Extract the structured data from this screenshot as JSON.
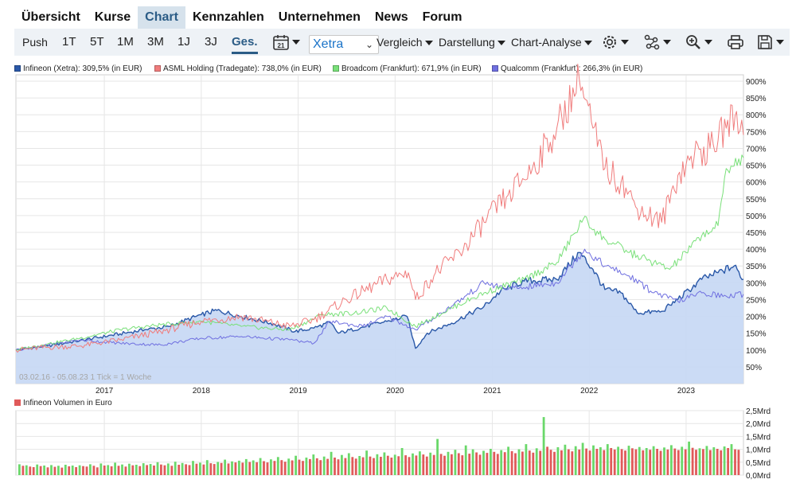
{
  "nav": {
    "items": [
      {
        "label": "Übersicht",
        "active": false
      },
      {
        "label": "Kurse",
        "active": false
      },
      {
        "label": "Chart",
        "active": true
      },
      {
        "label": "Kennzahlen",
        "active": false
      },
      {
        "label": "Unternehmen",
        "active": false
      },
      {
        "label": "News",
        "active": false
      },
      {
        "label": "Forum",
        "active": false
      }
    ]
  },
  "toolbar": {
    "push_label": "Push",
    "ranges": [
      "1T",
      "5T",
      "1M",
      "3M",
      "1J",
      "3J",
      "Ges."
    ],
    "active_range": "Ges.",
    "calendar_day": "21",
    "exchange": "Xetra",
    "compare_label": "Vergleich",
    "display_label": "Darstellung",
    "analysis_label": "Chart-Analyse",
    "icons": [
      "settings-icon",
      "indicators-icon",
      "zoom-icon",
      "print-icon",
      "save-icon"
    ]
  },
  "legend": [
    {
      "text": "Infineon (Xetra): 309,5% (in EUR)",
      "color": "#2a58a8"
    },
    {
      "text": "ASML Holding (Tradegate): 738,0% (in EUR)",
      "color": "#f07c7c"
    },
    {
      "text": "Broadcom (Frankfurt): 671,9% (in EUR)",
      "color": "#79e079"
    },
    {
      "text": "Qualcomm (Frankfurt): 266,3% (in EUR)",
      "color": "#6f6fe0"
    }
  ],
  "range_label": "03.02.16 - 05.08.23   1 Tick = 1 Woche",
  "volume_legend": {
    "text": "Infineon Volumen in Euro",
    "color": "#e05a5a"
  },
  "chart_data": [
    {
      "type": "line",
      "title": "",
      "xlabel": "",
      "ylabel": "",
      "x_ticks": [
        "2017",
        "2018",
        "2019",
        "2020",
        "2021",
        "2022",
        "2023"
      ],
      "y_ticks": [
        "50%",
        "100%",
        "150%",
        "200%",
        "250%",
        "300%",
        "350%",
        "400%",
        "450%",
        "500%",
        "550%",
        "600%",
        "650%",
        "700%",
        "750%",
        "800%",
        "850%",
        "900%"
      ],
      "ylim": [
        0,
        900
      ],
      "x_range": [
        "2016-02-03",
        "2023-08-05"
      ],
      "grid": true,
      "legend_position": "top-left",
      "series": [
        {
          "name": "Infineon (Xetra)",
          "color": "#2a58a8",
          "fill": "#c8d9f4",
          "style": "area",
          "points": [
            [
              "2016-02-03",
              100
            ],
            [
              "2016-06-01",
              112
            ],
            [
              "2016-10-01",
              128
            ],
            [
              "2017-03-01",
              148
            ],
            [
              "2017-06-01",
              160
            ],
            [
              "2017-09-01",
              170
            ],
            [
              "2018-01-01",
              205
            ],
            [
              "2018-03-01",
              218
            ],
            [
              "2018-06-01",
              200
            ],
            [
              "2018-10-01",
              178
            ],
            [
              "2018-12-20",
              155
            ],
            [
              "2019-03-01",
              165
            ],
            [
              "2019-05-01",
              182
            ],
            [
              "2019-06-01",
              150
            ],
            [
              "2019-09-01",
              168
            ],
            [
              "2019-12-01",
              185
            ],
            [
              "2020-02-15",
              200
            ],
            [
              "2020-03-18",
              105
            ],
            [
              "2020-05-01",
              150
            ],
            [
              "2020-08-01",
              180
            ],
            [
              "2020-12-01",
              230
            ],
            [
              "2021-02-01",
              275
            ],
            [
              "2021-05-01",
              305
            ],
            [
              "2021-09-01",
              310
            ],
            [
              "2021-11-25",
              390
            ],
            [
              "2022-01-15",
              340
            ],
            [
              "2022-03-01",
              280
            ],
            [
              "2022-05-01",
              270
            ],
            [
              "2022-07-01",
              210
            ],
            [
              "2022-10-01",
              215
            ],
            [
              "2022-12-01",
              250
            ],
            [
              "2023-03-01",
              310
            ],
            [
              "2023-05-01",
              330
            ],
            [
              "2023-07-01",
              350
            ],
            [
              "2023-08-05",
              310
            ]
          ]
        },
        {
          "name": "ASML Holding (Tradegate)",
          "color": "#f07c7c",
          "style": "line",
          "points": [
            [
              "2016-02-03",
              100
            ],
            [
              "2016-06-01",
              108
            ],
            [
              "2016-10-01",
              112
            ],
            [
              "2017-03-01",
              130
            ],
            [
              "2017-08-01",
              155
            ],
            [
              "2018-01-01",
              185
            ],
            [
              "2018-06-01",
              200
            ],
            [
              "2018-12-01",
              170
            ],
            [
              "2019-03-01",
              190
            ],
            [
              "2019-07-01",
              250
            ],
            [
              "2019-12-01",
              310
            ],
            [
              "2020-02-20",
              330
            ],
            [
              "2020-03-18",
              250
            ],
            [
              "2020-06-01",
              330
            ],
            [
              "2020-09-01",
              390
            ],
            [
              "2020-12-01",
              480
            ],
            [
              "2021-03-01",
              560
            ],
            [
              "2021-06-01",
              640
            ],
            [
              "2021-09-01",
              760
            ],
            [
              "2021-11-25",
              905
            ],
            [
              "2022-01-15",
              760
            ],
            [
              "2022-03-01",
              640
            ],
            [
              "2022-05-01",
              600
            ],
            [
              "2022-07-01",
              520
            ],
            [
              "2022-10-01",
              480
            ],
            [
              "2022-12-01",
              620
            ],
            [
              "2023-02-01",
              680
            ],
            [
              "2023-04-01",
              700
            ],
            [
              "2023-06-01",
              760
            ],
            [
              "2023-07-10",
              810
            ],
            [
              "2023-08-05",
              740
            ]
          ]
        },
        {
          "name": "Broadcom (Frankfurt)",
          "color": "#79e079",
          "style": "line",
          "points": [
            [
              "2016-02-03",
              100
            ],
            [
              "2016-06-01",
              118
            ],
            [
              "2016-10-01",
              135
            ],
            [
              "2017-03-01",
              160
            ],
            [
              "2017-08-01",
              175
            ],
            [
              "2018-01-01",
              185
            ],
            [
              "2018-06-01",
              170
            ],
            [
              "2018-12-01",
              160
            ],
            [
              "2019-04-01",
              205
            ],
            [
              "2019-08-01",
              210
            ],
            [
              "2019-12-01",
              225
            ],
            [
              "2020-03-18",
              170
            ],
            [
              "2020-08-01",
              225
            ],
            [
              "2020-12-01",
              270
            ],
            [
              "2021-05-01",
              310
            ],
            [
              "2021-09-01",
              360
            ],
            [
              "2021-12-10",
              490
            ],
            [
              "2022-03-01",
              430
            ],
            [
              "2022-06-01",
              390
            ],
            [
              "2022-09-01",
              360
            ],
            [
              "2022-11-01",
              340
            ],
            [
              "2023-01-01",
              390
            ],
            [
              "2023-03-01",
              440
            ],
            [
              "2023-05-01",
              470
            ],
            [
              "2023-06-01",
              640
            ],
            [
              "2023-08-05",
              672
            ]
          ]
        },
        {
          "name": "Qualcomm (Frankfurt)",
          "color": "#6f6fe0",
          "style": "line",
          "points": [
            [
              "2016-02-03",
              100
            ],
            [
              "2016-06-01",
              115
            ],
            [
              "2016-10-01",
              130
            ],
            [
              "2017-03-01",
              120
            ],
            [
              "2017-08-01",
              115
            ],
            [
              "2018-01-01",
              135
            ],
            [
              "2018-06-01",
              140
            ],
            [
              "2018-12-01",
              130
            ],
            [
              "2019-03-01",
              120
            ],
            [
              "2019-05-01",
              185
            ],
            [
              "2019-09-01",
              170
            ],
            [
              "2019-12-01",
              200
            ],
            [
              "2020-03-18",
              160
            ],
            [
              "2020-08-01",
              230
            ],
            [
              "2020-12-01",
              300
            ],
            [
              "2021-03-01",
              280
            ],
            [
              "2021-09-01",
              300
            ],
            [
              "2021-12-15",
              400
            ],
            [
              "2022-03-01",
              350
            ],
            [
              "2022-06-01",
              320
            ],
            [
              "2022-09-01",
              270
            ],
            [
              "2022-12-01",
              245
            ],
            [
              "2023-03-01",
              270
            ],
            [
              "2023-06-01",
              260
            ],
            [
              "2023-08-05",
              266
            ]
          ]
        }
      ]
    },
    {
      "type": "bar",
      "title": "",
      "ylabel": "",
      "y_ticks": [
        "0,0Mrd",
        "0,5Mrd",
        "1,0Mrd",
        "1,5Mrd",
        "2,0Mrd",
        "2,5Mrd"
      ],
      "ylim": [
        0,
        2.5
      ],
      "unit": "Mrd EUR",
      "bar_colors": {
        "up": "#6ad86a",
        "down": "#e05a5a"
      },
      "series": [
        {
          "name": "Infineon Volumen in Euro",
          "values": [
            0.42,
            0.36,
            0.38,
            0.33,
            0.31,
            0.41,
            0.35,
            0.37,
            0.3,
            0.39,
            0.32,
            0.36,
            0.29,
            0.4,
            0.34,
            0.37,
            0.31,
            0.38,
            0.35,
            0.33,
            0.42,
            0.36,
            0.3,
            0.45,
            0.37,
            0.39,
            0.34,
            0.48,
            0.36,
            0.41,
            0.33,
            0.44,
            0.38,
            0.4,
            0.35,
            0.46,
            0.39,
            0.43,
            0.37,
            0.5,
            0.41,
            0.38,
            0.45,
            0.36,
            0.52,
            0.4,
            0.47,
            0.42,
            0.39,
            0.55,
            0.44,
            0.48,
            0.41,
            0.58,
            0.46,
            0.43,
            0.51,
            0.47,
            0.6,
            0.45,
            0.53,
            0.49,
            0.56,
            0.48,
            0.62,
            0.51,
            0.57,
            0.5,
            0.66,
            0.54,
            0.49,
            0.61,
            0.55,
            0.7,
            0.58,
            0.52,
            0.64,
            0.57,
            0.75,
            0.6,
            0.55,
            0.68,
            0.62,
            0.8,
            0.65,
            0.58,
            0.72,
            0.63,
            0.9,
            0.68,
            0.61,
            0.78,
            0.66,
            0.85,
            0.7,
            0.64,
            0.74,
            0.69,
            0.95,
            0.72,
            0.66,
            0.81,
            0.71,
            0.88,
            0.75,
            0.68,
            0.79,
            0.73,
            1.05,
            0.77,
            0.7,
            0.84,
            0.76,
            0.92,
            0.8,
            0.72,
            0.87,
            0.78,
            1.4,
            0.82,
            0.75,
            0.9,
            0.81,
            0.98,
            0.85,
            0.77,
            1.15,
            0.83,
            1.0,
            0.88,
            0.79,
            0.94,
            0.86,
            1.02,
            0.9,
            0.82,
            0.97,
            0.89,
            1.1,
            0.93,
            0.85,
            1.0,
            0.91,
            1.2,
            0.95,
            0.87,
            1.04,
            0.94,
            2.25,
            1.1,
            0.98,
            0.9,
            1.08,
            0.96,
            1.18,
            1.0,
            0.92,
            1.12,
            0.99,
            1.25,
            1.03,
            0.95,
            1.15,
            1.02,
            1.08,
            0.97,
            1.2,
            1.05,
            0.99,
            1.1,
            1.01,
            0.95,
            1.14,
            1.04,
            1.0,
            1.09,
            0.96,
            1.05,
            0.98,
            1.12,
            1.02,
            0.94,
            1.07,
            0.99,
            1.16,
            1.03,
            0.97,
            1.1,
            1.0,
            1.3,
            1.06,
            0.98,
            1.04,
            1.01,
            1.13,
            0.97,
            1.08,
            1.02,
            0.96,
            1.11,
            1.05,
            1.2,
            1.0,
            0.98
          ]
        }
      ]
    }
  ]
}
